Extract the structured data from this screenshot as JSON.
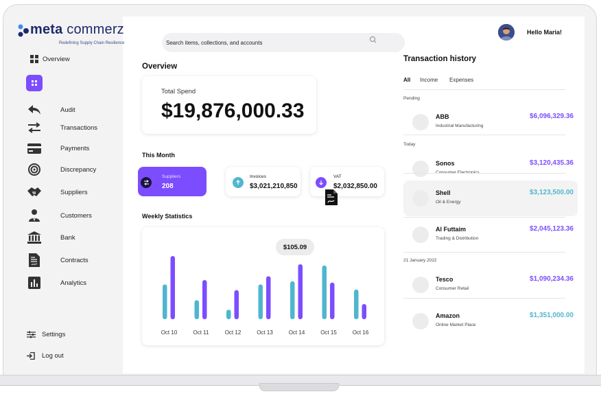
{
  "brand": {
    "name_bold": "meta",
    "name_rest": " commerz",
    "tagline": "Redefining Supply Chain Resilience",
    "color": "#1c2a6b"
  },
  "accent": "#7c4dff",
  "teal": "#4fb6cf",
  "sidebar": {
    "overview_label": "Overview",
    "items": [
      {
        "label": "Audit",
        "icon": "undo-arrow-icon"
      },
      {
        "label": "Transactions",
        "icon": "swap-arrows-icon"
      },
      {
        "label": "Payments",
        "icon": "credit-card-icon"
      },
      {
        "label": "Discrepancy",
        "icon": "target-icon"
      },
      {
        "label": "Suppliers",
        "icon": "handshake-icon"
      },
      {
        "label": "Customers",
        "icon": "people-icon"
      },
      {
        "label": "Bank",
        "icon": "bank-icon"
      },
      {
        "label": "Contracts",
        "icon": "document-icon"
      },
      {
        "label": "Analytics",
        "icon": "bar-chart-icon"
      }
    ],
    "settings_label": "Settings",
    "logout_label": "Log out"
  },
  "search": {
    "placeholder": "Search items, collections, and accounts"
  },
  "user": {
    "greeting": "Hello Maria!"
  },
  "overview": {
    "title": "Overview",
    "total_spend_label": "Total Spend",
    "total_spend_value": "$19,876,000.33"
  },
  "this_month": {
    "title": "This Month",
    "suppliers": {
      "label": "Suppliers",
      "value": "208"
    },
    "invoices": {
      "label": "Invoices",
      "value": "$3,021,210,850"
    },
    "vat": {
      "label": "VAT",
      "value": "$2,032,850.00"
    }
  },
  "weekly": {
    "title": "Weekly Statistics",
    "tooltip": "$105.09"
  },
  "chart_data": {
    "type": "bar",
    "categories": [
      "Oct 10",
      "Oct 11",
      "Oct 12",
      "Oct 13",
      "Oct 14",
      "Oct 15",
      "Oct 16"
    ],
    "series": [
      {
        "color": "#4fb6cf",
        "values": [
          0.55,
          0.3,
          0.15,
          0.55,
          0.6,
          0.85,
          0.47
        ]
      },
      {
        "color": "#7c4dff",
        "values": [
          1.0,
          0.62,
          0.46,
          0.68,
          0.87,
          0.58,
          0.24
        ]
      }
    ],
    "title": "Weekly Statistics",
    "xlabel": "",
    "ylabel": "",
    "grid": false
  },
  "transactions": {
    "title": "Transaction history",
    "tabs": [
      "All",
      "Income",
      "Expenses"
    ],
    "groups": [
      {
        "label": "Pending",
        "rows": [
          {
            "name": "ABB",
            "category": "Industrial Manufacturing",
            "amount": "$6,096,329.36",
            "color": "#7c4dff",
            "highlight": false
          }
        ]
      },
      {
        "label": "Today",
        "rows": [
          {
            "name": "Sonos",
            "category": "Consumer Electronics",
            "amount": "$3,120,435.36",
            "color": "#7c4dff",
            "highlight": false
          },
          {
            "name": "Shell",
            "category": "Oil & Energy",
            "amount": "$3,123,500.00",
            "color": "#4fb6cf",
            "highlight": true
          },
          {
            "name": "Al Futtaim",
            "category": "Trading & Distribution",
            "amount": "$2,045,123.36",
            "color": "#7c4dff",
            "highlight": false
          }
        ]
      },
      {
        "label": "21 January 2022",
        "rows": [
          {
            "name": "Tesco",
            "category": "Consumer Retail",
            "amount": "$1,090,234.36",
            "color": "#7c4dff",
            "highlight": false
          },
          {
            "name": "Amazon",
            "category": "Online Market Place",
            "amount": "$1,351,000.00",
            "color": "#4fb6cf",
            "highlight": false
          }
        ]
      }
    ]
  }
}
